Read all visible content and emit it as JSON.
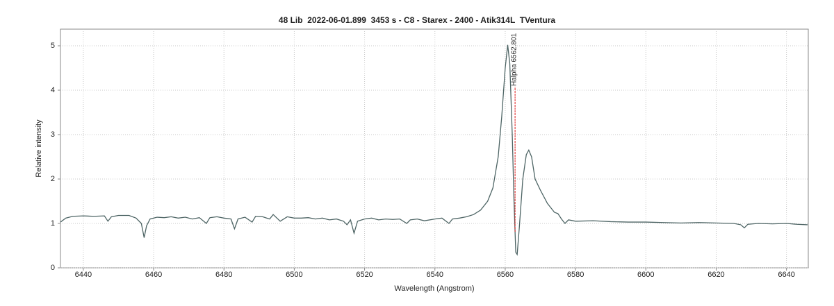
{
  "chart_data": {
    "type": "line",
    "title": "48 Lib  2022-06-01.899  3453 s - C8 - Starex - 2400 - Atik314L  TVentura",
    "x_label": "Wavelength (Angstrom)",
    "y_label": "Relative intensity",
    "x": [
      6433.5,
      6435,
      6437,
      6440,
      6443,
      6446,
      6447,
      6448,
      6450,
      6453,
      6455,
      6456.5,
      6457.3,
      6458,
      6459,
      6461,
      6463,
      6465,
      6467,
      6469,
      6471,
      6473,
      6475,
      6476,
      6478,
      6480,
      6482,
      6483,
      6484,
      6486,
      6488,
      6489,
      6491,
      6493,
      6494,
      6496,
      6498,
      6500,
      6502,
      6504,
      6506,
      6508,
      6510,
      6512,
      6514,
      6515,
      6516,
      6517,
      6518,
      6520,
      6522,
      6524,
      6526,
      6528,
      6530,
      6532,
      6533,
      6535,
      6537,
      6540,
      6542,
      6544,
      6545,
      6547,
      6549,
      6551,
      6553,
      6555,
      6556.5,
      6558,
      6559,
      6560,
      6560.7,
      6561.3,
      6562,
      6562.5,
      6563,
      6563.4,
      6564,
      6565,
      6566,
      6566.7,
      6567.5,
      6568.5,
      6570,
      6572,
      6574,
      6575,
      6576,
      6577,
      6578,
      6580,
      6585,
      6590,
      6595,
      6600,
      6605,
      6610,
      6615,
      6620,
      6625,
      6627,
      6628,
      6629,
      6632,
      6636,
      6640,
      6643,
      6646
    ],
    "values": [
      1.03,
      1.12,
      1.16,
      1.17,
      1.16,
      1.17,
      1.05,
      1.15,
      1.18,
      1.18,
      1.12,
      1.0,
      0.68,
      0.95,
      1.1,
      1.14,
      1.13,
      1.15,
      1.12,
      1.14,
      1.1,
      1.13,
      1.0,
      1.13,
      1.15,
      1.12,
      1.1,
      0.88,
      1.1,
      1.14,
      1.03,
      1.16,
      1.15,
      1.1,
      1.2,
      1.05,
      1.15,
      1.12,
      1.12,
      1.13,
      1.1,
      1.12,
      1.08,
      1.1,
      1.05,
      0.97,
      1.08,
      0.78,
      1.05,
      1.1,
      1.12,
      1.08,
      1.1,
      1.09,
      1.1,
      1.0,
      1.08,
      1.1,
      1.06,
      1.1,
      1.12,
      1.0,
      1.1,
      1.12,
      1.15,
      1.2,
      1.3,
      1.5,
      1.8,
      2.5,
      3.4,
      4.5,
      5.02,
      4.6,
      3.0,
      1.5,
      0.35,
      0.3,
      0.9,
      2.0,
      2.55,
      2.65,
      2.5,
      2.0,
      1.75,
      1.45,
      1.25,
      1.22,
      1.1,
      1.0,
      1.08,
      1.05,
      1.06,
      1.04,
      1.03,
      1.03,
      1.02,
      1.01,
      1.02,
      1.01,
      1.0,
      0.97,
      0.9,
      0.98,
      1.0,
      0.99,
      1.0,
      0.98,
      0.97
    ],
    "color": "#4d6464",
    "xlim": [
      6433.5,
      6646.2
    ],
    "ylim": [
      0,
      5.375
    ],
    "xticks": [
      6440,
      6460,
      6480,
      6500,
      6520,
      6540,
      6560,
      6580,
      6600,
      6620,
      6640
    ],
    "yticks": [
      0,
      1,
      2,
      3,
      4,
      5
    ],
    "grid": true,
    "annotations": [
      {
        "label": "Halpha 6562.801",
        "x": 6562.801,
        "color": "#e02020"
      }
    ]
  }
}
